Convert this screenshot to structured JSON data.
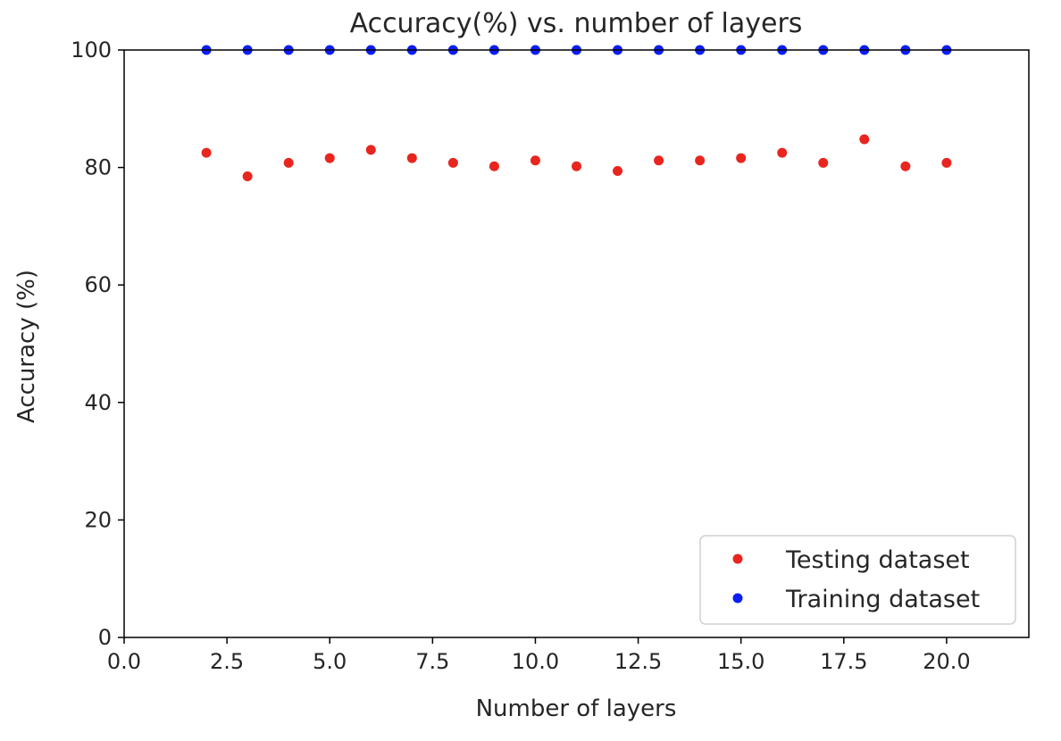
{
  "chart_data": {
    "type": "scatter",
    "title": "Accuracy(%) vs. number of layers",
    "xlabel": "Number of layers",
    "ylabel": "Accuracy (%)",
    "xlim": [
      0,
      22
    ],
    "ylim": [
      0,
      100
    ],
    "xticks": [
      "0.0",
      "2.5",
      "5.0",
      "7.5",
      "10.0",
      "12.5",
      "15.0",
      "17.5",
      "20.0"
    ],
    "yticks": [
      "0",
      "20",
      "40",
      "60",
      "80",
      "100"
    ],
    "grid": false,
    "legend": "bottom-right",
    "series": [
      {
        "name": "Testing dataset",
        "color": "#e8251f",
        "x": [
          2,
          3,
          4,
          5,
          6,
          7,
          8,
          9,
          10,
          11,
          12,
          13,
          14,
          15,
          16,
          17,
          18,
          19,
          20
        ],
        "y": [
          82.5,
          78.5,
          80.8,
          81.6,
          83.0,
          81.6,
          80.8,
          80.2,
          81.2,
          80.2,
          79.4,
          81.2,
          81.2,
          81.6,
          82.5,
          80.8,
          84.8,
          80.2,
          80.8
        ]
      },
      {
        "name": "Training dataset",
        "color": "#0a1ef5",
        "x": [
          2,
          3,
          4,
          5,
          6,
          7,
          8,
          9,
          10,
          11,
          12,
          13,
          14,
          15,
          16,
          17,
          18,
          19,
          20
        ],
        "y": [
          100,
          100,
          100,
          100,
          100,
          100,
          100,
          100,
          100,
          100,
          100,
          100,
          100,
          100,
          100,
          100,
          100,
          100,
          100
        ]
      }
    ]
  }
}
